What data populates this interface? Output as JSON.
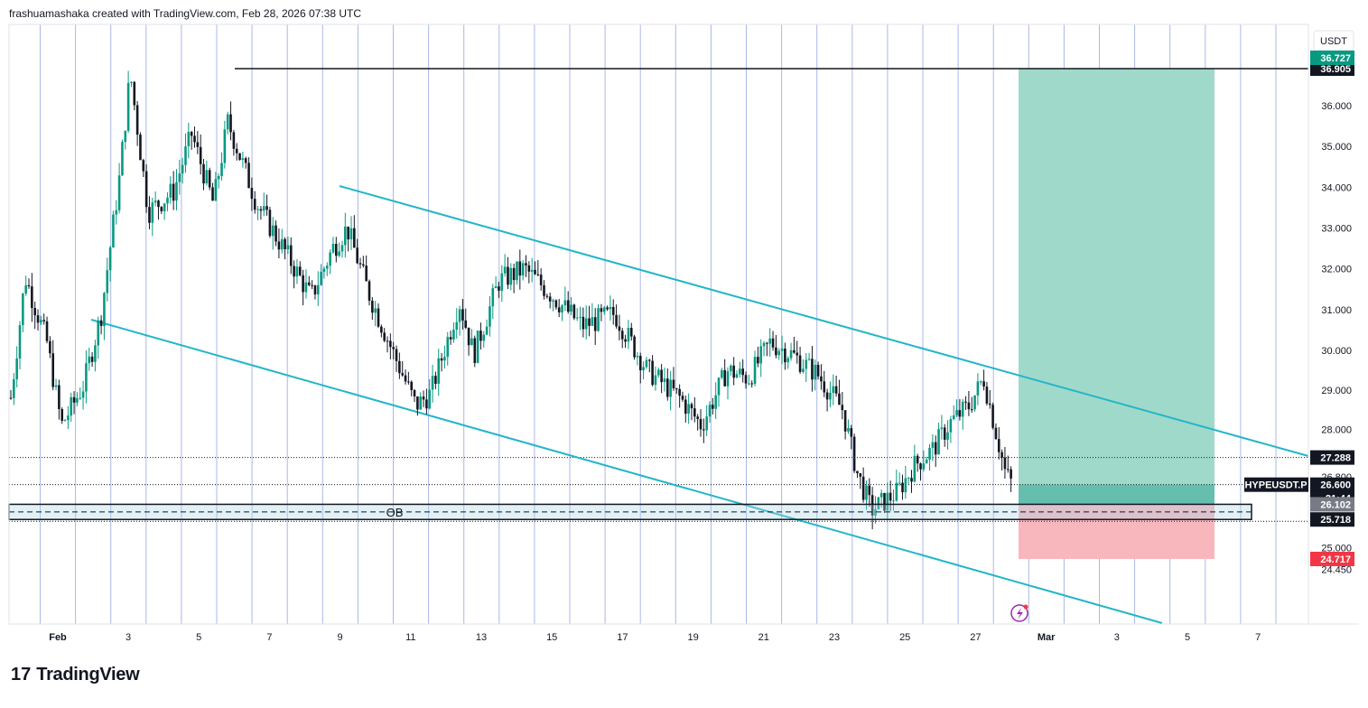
{
  "header": {
    "caption": "frashuamashaka created with TradingView.com, Feb 28, 2026 07:38 UTC"
  },
  "footer": {
    "brand": "TradingView",
    "logo_text": "17"
  },
  "colors": {
    "up": "#089981",
    "down": "#131722",
    "channel": "#22b5c9",
    "target_zone": "#9fd9c9",
    "target_zone_dark": "#66bfae",
    "stop_zone": "#f8b7bd",
    "vgrid": "#aab8e6"
  },
  "chart_data": {
    "type": "candlestick",
    "symbol": "HYPEUSDT.P",
    "currency": "USDT",
    "x_tick_labels": [
      "Feb",
      "3",
      "5",
      "7",
      "9",
      "11",
      "13",
      "15",
      "17",
      "19",
      "21",
      "23",
      "25",
      "27",
      "Mar",
      "3",
      "5",
      "7"
    ],
    "y_tick_labels": [
      "36.000",
      "35.000",
      "34.000",
      "33.000",
      "32.000",
      "31.000",
      "30.000",
      "29.000",
      "28.000",
      "26.800",
      "25.000",
      "24.450"
    ],
    "ylim": [
      24.2,
      37.8
    ],
    "price_tags": [
      {
        "id": "top",
        "label": "36.905",
        "value": 36.905,
        "style": "dark"
      },
      {
        "id": "top_hidden",
        "label": "36.727",
        "value": 36.727,
        "style": "green"
      },
      {
        "id": "hline",
        "label": "27.288",
        "value": 27.288,
        "style": "dark"
      },
      {
        "id": "last",
        "label": "26.600",
        "value": 26.6,
        "style": "dark"
      },
      {
        "id": "countdown",
        "label": "21:44",
        "value": 26.24,
        "style": "dark-sub"
      },
      {
        "id": "ob_top",
        "label": "26.102",
        "value": 26.102,
        "style": "grey"
      },
      {
        "id": "ob_bot",
        "label": "25.718",
        "value": 25.718,
        "style": "dark"
      },
      {
        "id": "stop",
        "label": "24.717",
        "value": 24.717,
        "style": "red"
      }
    ],
    "symbol_tag": "HYPEUSDT.P",
    "annotations": {
      "ob_label": "OB",
      "ob_zone": [
        25.718,
        26.102
      ],
      "resistance_line": 36.905,
      "long_position": {
        "entry": 26.102,
        "target": 36.905,
        "stop": 24.717
      },
      "upper_channel": [
        [
          9.0,
          33.72
        ],
        [
          28.7,
          29.0
        ]
      ],
      "lower_channel": [
        [
          2.0,
          30.4
        ],
        [
          23.0,
          25.85
        ],
        [
          28.0,
          24.68
        ]
      ]
    },
    "price_path_keypoints": [
      [
        0.0,
        28.8
      ],
      [
        0.4,
        31.8
      ],
      [
        1.0,
        30.2
      ],
      [
        1.4,
        28.1
      ],
      [
        2.0,
        29.1
      ],
      [
        2.5,
        30.9
      ],
      [
        3.0,
        34.2
      ],
      [
        3.3,
        36.8
      ],
      [
        3.8,
        33.4
      ],
      [
        4.5,
        33.9
      ],
      [
        5.0,
        35.3
      ],
      [
        5.6,
        33.6
      ],
      [
        6.0,
        35.6
      ],
      [
        6.8,
        33.6
      ],
      [
        7.6,
        32.4
      ],
      [
        8.3,
        31.3
      ],
      [
        8.9,
        32.5
      ],
      [
        9.3,
        33.0
      ],
      [
        9.9,
        31.4
      ],
      [
        10.5,
        30.1
      ],
      [
        11.2,
        28.6
      ],
      [
        11.6,
        28.9
      ],
      [
        12.4,
        31.2
      ],
      [
        12.8,
        29.9
      ],
      [
        13.5,
        31.7
      ],
      [
        14.2,
        32.0
      ],
      [
        14.8,
        31.5
      ],
      [
        15.8,
        30.6
      ],
      [
        16.7,
        30.9
      ],
      [
        17.6,
        29.5
      ],
      [
        18.5,
        28.8
      ],
      [
        19.1,
        28.1
      ],
      [
        19.8,
        29.5
      ],
      [
        20.4,
        29.3
      ],
      [
        21.0,
        30.2
      ],
      [
        21.6,
        29.9
      ],
      [
        22.3,
        29.4
      ],
      [
        23.0,
        28.5
      ],
      [
        23.4,
        26.9
      ],
      [
        23.8,
        25.95
      ],
      [
        24.5,
        26.4
      ],
      [
        25.0,
        27.1
      ],
      [
        25.5,
        27.5
      ],
      [
        26.0,
        28.2
      ],
      [
        26.5,
        28.6
      ],
      [
        26.9,
        29.3
      ],
      [
        27.2,
        28.1
      ],
      [
        27.5,
        26.9
      ],
      [
        27.7,
        26.6
      ]
    ]
  }
}
